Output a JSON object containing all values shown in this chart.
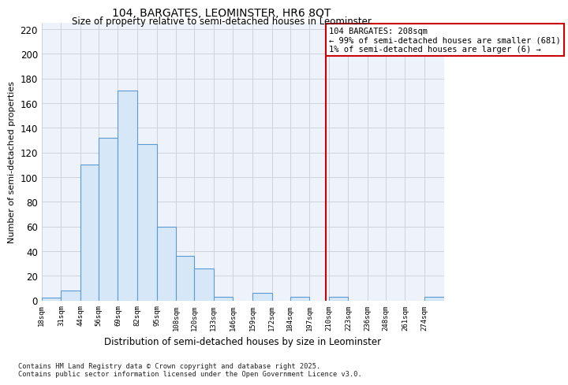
{
  "title": "104, BARGATES, LEOMINSTER, HR6 8QT",
  "subtitle": "Size of property relative to semi-detached houses in Leominster",
  "xlabel": "Distribution of semi-detached houses by size in Leominster",
  "ylabel": "Number of semi-detached properties",
  "bin_edges": [
    18,
    31,
    44,
    56,
    69,
    82,
    95,
    108,
    120,
    133,
    146,
    159,
    172,
    184,
    197,
    210,
    223,
    236,
    248,
    261,
    274,
    287
  ],
  "bar_heights": [
    2,
    8,
    110,
    132,
    170,
    127,
    60,
    36,
    26,
    3,
    0,
    6,
    0,
    3,
    0,
    3,
    0,
    0,
    0,
    0,
    3
  ],
  "bar_color": "#d6e8f7",
  "bar_edge_color": "#5b9bd5",
  "bg_color": "#ffffff",
  "plot_bg_color": "#eef2fb",
  "grid_color": "#c8cdd8",
  "vline_x": 208,
  "vline_color": "#cc0000",
  "annotation_title": "104 BARGATES: 208sqm",
  "annotation_line1": "← 99% of semi-detached houses are smaller (681)",
  "annotation_line2": "1% of semi-detached houses are larger (6) →",
  "annotation_box_edge_color": "#cc0000",
  "footnote1": "Contains HM Land Registry data © Crown copyright and database right 2025.",
  "footnote2": "Contains public sector information licensed under the Open Government Licence v3.0.",
  "ylim": [
    0,
    225
  ],
  "yticks": [
    0,
    20,
    40,
    60,
    80,
    100,
    120,
    140,
    160,
    180,
    200,
    220
  ],
  "tick_labels": [
    "18sqm",
    "31sqm",
    "44sqm",
    "56sqm",
    "69sqm",
    "82sqm",
    "95sqm",
    "108sqm",
    "120sqm",
    "133sqm",
    "146sqm",
    "159sqm",
    "172sqm",
    "184sqm",
    "197sqm",
    "210sqm",
    "223sqm",
    "236sqm",
    "248sqm",
    "261sqm",
    "274sqm"
  ]
}
